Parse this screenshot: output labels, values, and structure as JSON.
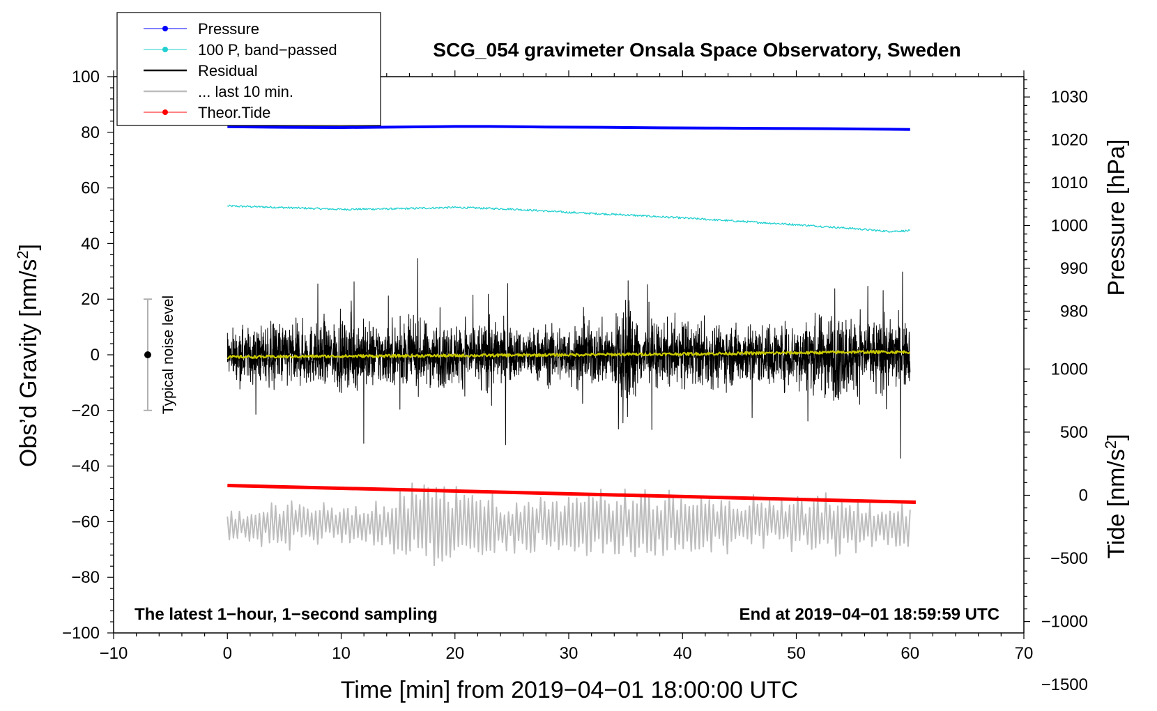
{
  "chart_data": {
    "type": "line",
    "title": "SCG_054 gravimeter Onsala Space Observatory, Sweden",
    "xlabel": "Time [min] from 2019−04−01 18:00:00 UTC",
    "ylabel": "Obs’d Gravity [nm/s",
    "ylabel_sup": "2",
    "ylabel_end": "]",
    "xlim": [
      -10,
      70
    ],
    "ylim": [
      -100,
      100
    ],
    "x_ticks": [
      -10,
      0,
      10,
      20,
      30,
      40,
      50,
      60,
      70
    ],
    "x_tick_labels": [
      "−10",
      "0",
      "10",
      "20",
      "30",
      "40",
      "50",
      "60",
      "70"
    ],
    "y_ticks": [
      100,
      80,
      60,
      40,
      20,
      0,
      -20,
      -40,
      -60,
      -80,
      -100
    ],
    "y_tick_labels": [
      "100",
      "80",
      "60",
      "40",
      "20",
      "0",
      "−20",
      "−40",
      "−60",
      "−80",
      "−100"
    ],
    "pressure_axis": {
      "label": "Pressure [hPa]",
      "ticks": [
        1030,
        1020,
        1010,
        1000,
        990,
        980
      ],
      "tick_labels": [
        "1030",
        "1020",
        "1010",
        "1000",
        "990",
        "980"
      ],
      "map": {
        "value_ref": 1000,
        "gravity_ref": 46.5,
        "gravity_per_unit": 1.54
      }
    },
    "tide_axis": {
      "label": "Tide [nm/s",
      "label_sup": "2",
      "label_end": "]",
      "ticks": [
        1000,
        500,
        0,
        -500,
        -1000,
        -1500
      ],
      "tick_labels": [
        "1000",
        "500",
        "0",
        "−500",
        "−1000",
        "−1500"
      ],
      "map": {
        "value_ref": 0,
        "gravity_ref": -50.5,
        "gravity_per_unit": 0.0454
      }
    },
    "series": [
      {
        "name": "Pressure",
        "color": "#0000ff",
        "width": 4,
        "x": [
          0,
          5,
          10,
          15,
          20,
          23,
          28,
          33,
          38,
          43,
          48,
          53,
          58,
          60
        ],
        "y": [
          82,
          81.8,
          81.7,
          81.9,
          82.1,
          82.1,
          81.9,
          81.8,
          81.6,
          81.5,
          81.4,
          81.3,
          81.1,
          81
        ]
      },
      {
        "name": "100 P, band−passed",
        "color": "#22d0d0",
        "width": 1.3,
        "noise": 0.35,
        "x": [
          0,
          3,
          6,
          10,
          15,
          20,
          25,
          30,
          35,
          40,
          45,
          50,
          55,
          58,
          60
        ],
        "y": [
          53.5,
          53.2,
          52.8,
          52.3,
          52.5,
          53,
          52.4,
          51.2,
          50.3,
          49.2,
          48,
          46.8,
          45.4,
          44.4,
          44.6
        ]
      },
      {
        "name": "Residual",
        "color": "#000000",
        "width": 1,
        "type": "noise",
        "x_range": [
          0,
          60
        ],
        "base": 0,
        "env_x": [
          0,
          2,
          5,
          8,
          11,
          14,
          17,
          20,
          23,
          26,
          29,
          32,
          34,
          35,
          36,
          38,
          41,
          44,
          47,
          50,
          52,
          53,
          55,
          57,
          60
        ],
        "env_y": [
          9,
          11,
          13,
          12,
          14,
          12,
          13,
          12,
          13,
          10,
          12,
          12,
          14,
          27,
          13,
          12,
          13,
          12,
          12,
          13,
          15,
          18,
          15,
          14,
          13
        ]
      },
      {
        "name": "Residual (smoothed)",
        "color": "#c8c800",
        "width": 2.2,
        "noise": 0.5,
        "x": [
          0,
          10,
          20,
          30,
          40,
          50,
          55,
          60
        ],
        "y": [
          -0.8,
          -0.5,
          -0.3,
          0,
          0.3,
          0.7,
          1,
          1
        ]
      },
      {
        "name": "... last 10 min.",
        "color": "#bdbdbd",
        "width": 2,
        "type": "oscillation",
        "x_range": [
          0,
          60
        ],
        "base": -61,
        "amp_x": [
          0,
          5,
          10,
          14,
          16,
          19,
          23,
          26,
          30,
          35,
          38,
          41,
          45,
          50,
          54,
          57,
          60
        ],
        "amp_y": [
          7,
          10,
          9,
          12,
          20,
          18,
          14,
          11,
          15,
          14,
          17,
          15,
          11,
          13,
          16,
          10,
          9
        ]
      },
      {
        "name": "Theor.Tide",
        "color": "#ff0000",
        "width": 5,
        "x": [
          0,
          60.5
        ],
        "y": [
          -47,
          -53
        ]
      }
    ],
    "legend": {
      "position": "top-left",
      "entries": [
        {
          "label": "Pressure",
          "color": "#0000ff",
          "marker": true,
          "width": 1
        },
        {
          "label": "100 P, band−passed",
          "color": "#22d0d0",
          "marker": true,
          "width": 1
        },
        {
          "label": "Residual",
          "color": "#000000",
          "marker": false,
          "width": 2.5
        },
        {
          "label": "... last 10 min.",
          "color": "#bdbdbd",
          "marker": false,
          "width": 2.5
        },
        {
          "label": "Theor.Tide",
          "color": "#ff0000",
          "marker": true,
          "width": 1
        }
      ]
    },
    "noise_bar": {
      "label": "Typical noise level",
      "x": -7,
      "center": 0,
      "half_range": 20
    },
    "annotations": {
      "bottom_left": "The latest 1−hour, 1−second sampling",
      "bottom_right": "End at 2019−04−01 18:59:59 UTC"
    }
  }
}
